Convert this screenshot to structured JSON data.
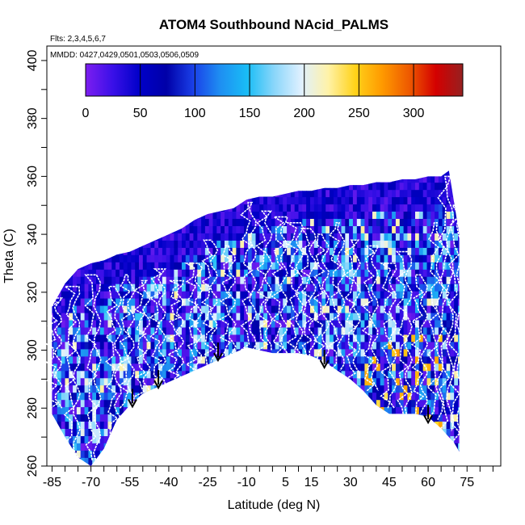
{
  "chart_data": {
    "type": "heatmap",
    "title": "ATOM4 Southbound NAcid_PALMS",
    "flights_label": "Flts: 2,3,4,5,6,7",
    "dates_label": "MMDD: 0427,0429,0501,0503,0506,0509",
    "xlabel": "Latitude (deg N)",
    "ylabel": "Theta (C)",
    "xlim": [
      -87,
      88
    ],
    "ylim": [
      260,
      405
    ],
    "x_ticks": [
      -85,
      -70,
      -55,
      -40,
      -25,
      -10,
      5,
      15,
      30,
      45,
      60,
      75
    ],
    "x_minor_tick_step": 5,
    "y_ticks": [
      260,
      280,
      300,
      320,
      340,
      360,
      380,
      400
    ],
    "colorbar": {
      "range": [
        0,
        345
      ],
      "ticks": [
        0,
        50,
        100,
        150,
        200,
        250,
        300
      ],
      "colors": [
        "#7d1ef0",
        "#3a10e8",
        "#0000c8",
        "#0000a8",
        "#1a40e8",
        "#1e8ff2",
        "#19bdf6",
        "#8ad6fa",
        "#dff0ff",
        "#fff2a8",
        "#ffd21a",
        "#ff9a00",
        "#ee5a00",
        "#d40000",
        "#962020"
      ]
    },
    "domain_top": [
      [
        -85,
        315
      ],
      [
        -80,
        323
      ],
      [
        -75,
        328
      ],
      [
        -70,
        330
      ],
      [
        -65,
        331
      ],
      [
        -60,
        333
      ],
      [
        -55,
        334
      ],
      [
        -50,
        336
      ],
      [
        -45,
        338
      ],
      [
        -40,
        340
      ],
      [
        -35,
        342
      ],
      [
        -30,
        345
      ],
      [
        -25,
        347
      ],
      [
        -20,
        348
      ],
      [
        -15,
        349
      ],
      [
        -10,
        352
      ],
      [
        -5,
        353
      ],
      [
        0,
        353
      ],
      [
        5,
        354
      ],
      [
        10,
        355
      ],
      [
        15,
        355
      ],
      [
        20,
        356
      ],
      [
        25,
        356
      ],
      [
        30,
        357
      ],
      [
        35,
        357
      ],
      [
        40,
        358
      ],
      [
        45,
        358
      ],
      [
        50,
        359
      ],
      [
        55,
        359
      ],
      [
        60,
        360
      ],
      [
        65,
        360
      ],
      [
        68,
        362
      ],
      [
        72,
        340
      ]
    ],
    "domain_bottom": [
      [
        -85,
        278
      ],
      [
        -80,
        270
      ],
      [
        -75,
        263
      ],
      [
        -70,
        260
      ],
      [
        -65,
        266
      ],
      [
        -60,
        276
      ],
      [
        -55,
        281
      ],
      [
        -50,
        285
      ],
      [
        -45,
        287
      ],
      [
        -40,
        289
      ],
      [
        -35,
        291
      ],
      [
        -30,
        293
      ],
      [
        -25,
        295
      ],
      [
        -20,
        297
      ],
      [
        -15,
        299
      ],
      [
        -10,
        301
      ],
      [
        -5,
        300
      ],
      [
        0,
        299
      ],
      [
        5,
        299
      ],
      [
        10,
        299
      ],
      [
        15,
        298
      ],
      [
        20,
        296
      ],
      [
        25,
        293
      ],
      [
        30,
        290
      ],
      [
        35,
        286
      ],
      [
        40,
        281
      ],
      [
        45,
        278
      ],
      [
        50,
        278
      ],
      [
        55,
        278
      ],
      [
        60,
        277
      ],
      [
        65,
        273
      ],
      [
        70,
        268
      ],
      [
        72,
        265
      ]
    ],
    "profiles": [
      {
        "lat": -85,
        "lo": 280,
        "hi": 318
      },
      {
        "lat": -78,
        "lo": 263,
        "hi": 322
      },
      {
        "lat": -70,
        "lo": 262,
        "hi": 326
      },
      {
        "lat": -62,
        "lo": 270,
        "hi": 322
      },
      {
        "lat": -57,
        "lo": 280,
        "hi": 326
      },
      {
        "lat": -51,
        "lo": 284,
        "hi": 324
      },
      {
        "lat": -45,
        "lo": 288,
        "hi": 328
      },
      {
        "lat": -38,
        "lo": 290,
        "hi": 324
      },
      {
        "lat": -31,
        "lo": 292,
        "hi": 330
      },
      {
        "lat": -25,
        "lo": 295,
        "hi": 338
      },
      {
        "lat": -18,
        "lo": 298,
        "hi": 336
      },
      {
        "lat": -10,
        "lo": 300,
        "hi": 351
      },
      {
        "lat": -4,
        "lo": 300,
        "hi": 348
      },
      {
        "lat": 2,
        "lo": 299,
        "hi": 346
      },
      {
        "lat": 8,
        "lo": 299,
        "hi": 344
      },
      {
        "lat": 13,
        "lo": 298,
        "hi": 342
      },
      {
        "lat": 18,
        "lo": 296,
        "hi": 340
      },
      {
        "lat": 24,
        "lo": 293,
        "hi": 344
      },
      {
        "lat": 30,
        "lo": 290,
        "hi": 338
      },
      {
        "lat": 37,
        "lo": 286,
        "hi": 336
      },
      {
        "lat": 44,
        "lo": 280,
        "hi": 330
      },
      {
        "lat": 50,
        "lo": 278,
        "hi": 334
      },
      {
        "lat": 56,
        "lo": 278,
        "hi": 326
      },
      {
        "lat": 62,
        "lo": 276,
        "hi": 344
      },
      {
        "lat": 66,
        "lo": 272,
        "hi": 360
      },
      {
        "lat": 70,
        "lo": 268,
        "hi": 350
      }
    ],
    "arrows": [
      {
        "lat": -54,
        "theta": 280.5
      },
      {
        "lat": -44,
        "theta": 287
      },
      {
        "lat": -21,
        "theta": 296.5
      },
      {
        "lat": 20,
        "theta": 294
      },
      {
        "lat": 60,
        "theta": 275
      }
    ],
    "cell_values_seed": 7
  }
}
